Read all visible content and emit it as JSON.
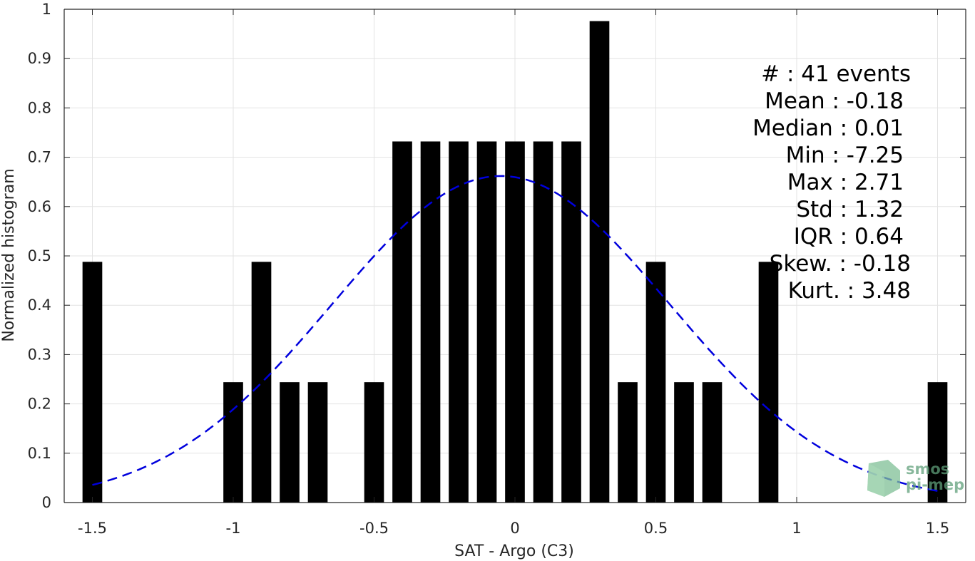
{
  "chart_data": {
    "type": "bar",
    "title": "",
    "xlabel": "SAT - Argo (C3)",
    "ylabel": "Normalized histogram",
    "xlim": [
      -1.6,
      1.6
    ],
    "ylim": [
      0,
      1
    ],
    "xticks": [
      -1.5,
      -1,
      -0.5,
      0,
      0.5,
      1,
      1.5
    ],
    "xtick_labels": [
      "-1.5",
      "-1",
      "-0.5",
      "0",
      "0.5",
      "1",
      "1.5"
    ],
    "yticks": [
      0,
      0.1,
      0.2,
      0.3,
      0.4,
      0.5,
      0.6,
      0.7,
      0.8,
      0.9,
      1
    ],
    "ytick_labels": [
      "0",
      "0.1",
      "0.2",
      "0.3",
      "0.4",
      "0.5",
      "0.6",
      "0.7",
      "0.8",
      "0.9",
      "1"
    ],
    "grid": true,
    "bar_color": "#000000",
    "bar_width": 0.07,
    "x": [
      -1.5,
      -1.0,
      -0.9,
      -0.8,
      -0.7,
      -0.5,
      -0.4,
      -0.3,
      -0.2,
      -0.1,
      0.0,
      0.1,
      0.2,
      0.3,
      0.4,
      0.5,
      0.6,
      0.7,
      0.9,
      1.5
    ],
    "values": [
      0.488,
      0.244,
      0.488,
      0.244,
      0.244,
      0.244,
      0.732,
      0.732,
      0.732,
      0.732,
      0.732,
      0.732,
      0.732,
      0.976,
      0.244,
      0.488,
      0.244,
      0.244,
      0.488,
      0.244
    ],
    "fit_curve": {
      "style": "dashed",
      "color": "#0000dd",
      "peak": 0.662,
      "mean": -0.05,
      "sigma": 0.6,
      "x_start": -1.5,
      "x_end": 1.5
    },
    "stats_lines": [
      "#  : 41 events",
      "Mean : -0.18",
      "Median : 0.01",
      "Min : -7.25",
      "Max : 2.71",
      "Std : 1.32",
      "IQR : 0.64",
      "Skew. : -0.18",
      "Kurt. : 3.48"
    ],
    "logo_lines": [
      "smos",
      "pi-mep"
    ]
  },
  "colors": {
    "axis": "#262626",
    "grid": "#e3e3e3",
    "logo": "#5f9f7a"
  }
}
